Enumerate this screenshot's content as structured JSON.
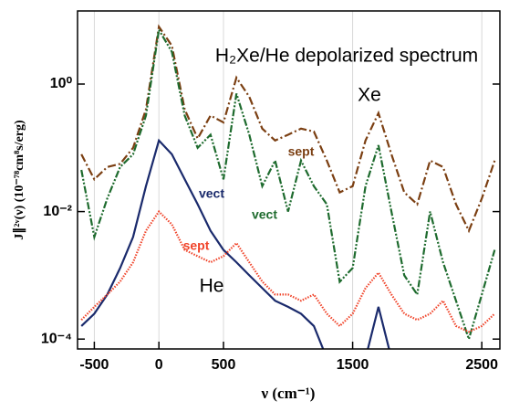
{
  "chart_data": {
    "type": "line",
    "title": "H₂Xe/He depolarized spectrum",
    "x_label": "ν (cm⁻¹)",
    "y_label": "J∥²ᵛ(ν) (10⁻⁷⁸cm⁸s/erg)",
    "annotations": [
      "Xe",
      "He"
    ],
    "x": [
      -600,
      -500,
      -400,
      -300,
      -200,
      -100,
      0,
      100,
      200,
      300,
      400,
      500,
      600,
      700,
      800,
      900,
      1000,
      1100,
      1200,
      1300,
      1400,
      1500,
      1600,
      1700,
      1800,
      1900,
      2000,
      2100,
      2200,
      2300,
      2400,
      2500,
      2600
    ],
    "series": [
      {
        "name": "sept",
        "color": "#7b3f12",
        "style": "dashdot",
        "values": [
          0.079,
          0.032,
          0.05,
          0.056,
          0.1,
          0.4,
          7.9,
          4.0,
          0.4,
          0.14,
          0.32,
          0.25,
          1.26,
          0.63,
          0.2,
          0.13,
          0.16,
          0.2,
          0.18,
          0.063,
          0.02,
          0.025,
          0.13,
          0.35,
          0.079,
          0.02,
          0.013,
          0.063,
          0.05,
          0.013,
          0.005,
          0.016,
          0.063
        ]
      },
      {
        "name": "vect",
        "color": "#1e6b2e",
        "style": "dashdotdot",
        "values": [
          0.045,
          0.004,
          0.016,
          0.05,
          0.079,
          0.32,
          7.1,
          3.2,
          0.32,
          0.1,
          0.16,
          0.032,
          0.71,
          0.16,
          0.025,
          0.063,
          0.01,
          0.063,
          0.025,
          0.013,
          0.00079,
          0.0013,
          0.025,
          0.11,
          0.01,
          0.001,
          0.0005,
          0.01,
          0.0016,
          0.0004,
          0.0001,
          0.0005,
          0.0025
        ]
      },
      {
        "name": "vect",
        "color": "#1a2a6c",
        "style": "solid",
        "values": [
          0.00016,
          0.00025,
          0.0005,
          0.0013,
          0.004,
          0.025,
          0.13,
          0.079,
          0.032,
          0.013,
          0.005,
          0.0025,
          0.0016,
          0.001,
          0.00063,
          0.0004,
          0.00032,
          0.00025,
          0.00016,
          5e-05,
          null,
          null,
          5e-05,
          0.00032,
          5e-05,
          null,
          null,
          null,
          null,
          null,
          null,
          null,
          null
        ]
      },
      {
        "name": "sept",
        "color": "#f0442a",
        "style": "dotted",
        "values": [
          0.0002,
          0.00032,
          0.0005,
          0.0008,
          0.0016,
          0.005,
          0.01,
          0.0063,
          0.0025,
          0.002,
          0.0016,
          0.002,
          0.0032,
          0.0016,
          0.0008,
          0.0005,
          0.0005,
          0.0004,
          0.0005,
          0.00025,
          0.00016,
          0.00025,
          0.00063,
          0.0011,
          0.0005,
          0.00025,
          0.0002,
          0.00025,
          0.0004,
          0.00016,
          0.00013,
          0.00016,
          0.00025
        ]
      }
    ],
    "xlim": [
      -630,
      2640
    ],
    "xticks": [
      -500,
      0,
      500,
      1500,
      2500
    ],
    "ylim": [
      7e-05,
      14
    ],
    "yscale": "log",
    "yticks": [
      {
        "value": 0.0001,
        "label": "10⁻⁴"
      },
      {
        "value": 0.01,
        "label": "10⁻²"
      },
      {
        "value": 1,
        "label": "10⁰"
      }
    ],
    "grid": true
  }
}
